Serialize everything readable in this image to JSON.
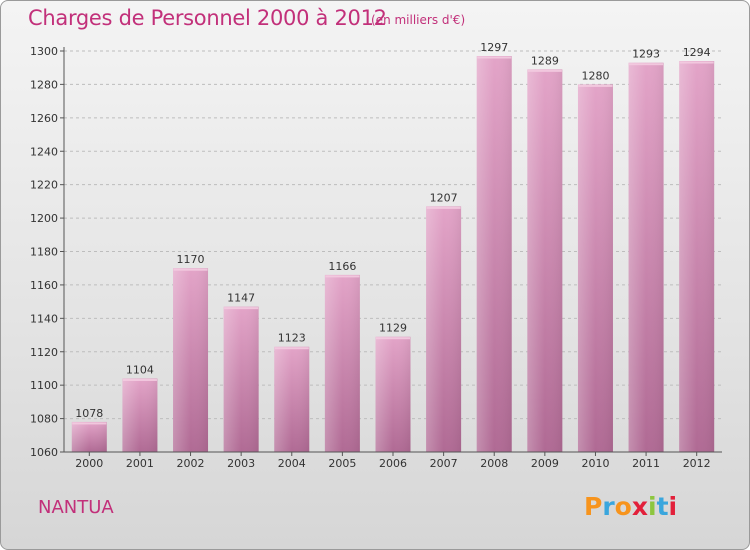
{
  "title": "Charges de Personnel 2000 à 2012",
  "subtitle": "(en milliers d'€)",
  "commune": "NANTUA",
  "logo": {
    "letters": [
      "P",
      "r",
      "o",
      "x",
      "i",
      "t",
      "i"
    ],
    "colors": [
      "#f7941d",
      "#3aa6dd",
      "#f7941d",
      "#e2203a",
      "#8dc63f",
      "#3aa6dd",
      "#e2203a"
    ]
  },
  "colors": {
    "accent": "#c2307a",
    "bar_top": "#e3a4c8",
    "bar_bottom": "#b06a94",
    "grid": "#bdbdbd"
  },
  "chart_data": {
    "type": "bar",
    "title": "Charges de Personnel 2000 à 2012",
    "subtitle": "(en milliers d'€)",
    "xlabel": "",
    "ylabel": "",
    "categories": [
      "2000",
      "2001",
      "2002",
      "2003",
      "2004",
      "2005",
      "2006",
      "2007",
      "2008",
      "2009",
      "2010",
      "2011",
      "2012"
    ],
    "values": [
      1078,
      1104,
      1170,
      1147,
      1123,
      1166,
      1129,
      1207,
      1297,
      1289,
      1280,
      1293,
      1294
    ],
    "ylim": [
      1060,
      1300
    ],
    "yticks": [
      1060,
      1080,
      1100,
      1120,
      1140,
      1160,
      1180,
      1200,
      1220,
      1240,
      1260,
      1280,
      1300
    ],
    "grid": true,
    "data_labels": true
  }
}
